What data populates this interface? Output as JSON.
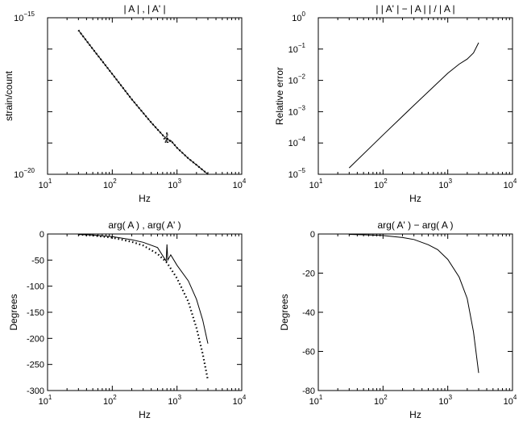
{
  "chart_data": [
    {
      "type": "line",
      "title": "| A | , | A' |",
      "xlabel": "Hz",
      "ylabel": "strain/count",
      "xscale": "log",
      "yscale": "log",
      "xlim": [
        10,
        10000
      ],
      "ylim": [
        1e-20,
        1e-15
      ],
      "xticks": [
        {
          "base": "10",
          "exp": "1"
        },
        {
          "base": "10",
          "exp": "2"
        },
        {
          "base": "10",
          "exp": "3"
        },
        {
          "base": "10",
          "exp": "4"
        }
      ],
      "yticks": [
        {
          "base": "10",
          "exp": "−15"
        },
        {
          "base": "10",
          "exp": "−20"
        }
      ],
      "series": [
        {
          "style": "solid",
          "x": [
            30,
            50,
            100,
            200,
            400,
            600,
            700,
            750,
            800,
            1000,
            1500,
            2000,
            3000
          ],
          "y": [
            4e-16,
            1e-16,
            1.6e-17,
            2.5e-18,
            4.5e-19,
            1.8e-19,
            1.3e-19,
            1.25e-19,
            1.2e-19,
            7e-20,
            3.2e-20,
            2e-20,
            1e-20
          ]
        },
        {
          "style": "dotted",
          "x": [
            30,
            50,
            100,
            200,
            400,
            600,
            680,
            700,
            720,
            800,
            1000,
            1500,
            2000,
            3000
          ],
          "y": [
            4e-16,
            1e-16,
            1.6e-17,
            2.5e-18,
            4.5e-19,
            1.8e-19,
            1e-19,
            2.2e-19,
            1e-19,
            1.2e-19,
            7e-20,
            3.2e-20,
            2e-20,
            1e-20
          ]
        }
      ]
    },
    {
      "type": "line",
      "title": "| | A' | − | A | | / | A |",
      "xlabel": "Hz",
      "ylabel": "Relative error",
      "xscale": "log",
      "yscale": "log",
      "xlim": [
        10,
        10000
      ],
      "ylim": [
        1e-05,
        1
      ],
      "xticks": [
        {
          "base": "10",
          "exp": "1"
        },
        {
          "base": "10",
          "exp": "2"
        },
        {
          "base": "10",
          "exp": "3"
        },
        {
          "base": "10",
          "exp": "4"
        }
      ],
      "yticks": [
        {
          "base": "10",
          "exp": "0"
        },
        {
          "base": "10",
          "exp": "−1"
        },
        {
          "base": "10",
          "exp": "−2"
        },
        {
          "base": "10",
          "exp": "−3"
        },
        {
          "base": "10",
          "exp": "−4"
        },
        {
          "base": "10",
          "exp": "−5"
        }
      ],
      "series": [
        {
          "style": "solid",
          "x": [
            30,
            100,
            300,
            1000,
            1500,
            2000,
            2500,
            3000
          ],
          "y": [
            1.6e-05,
            0.00018,
            0.0016,
            0.017,
            0.033,
            0.048,
            0.075,
            0.16
          ]
        }
      ]
    },
    {
      "type": "line",
      "title": "arg( A ) , arg( A' )",
      "xlabel": "Hz",
      "ylabel": "Degrees",
      "xscale": "log",
      "yscale": "linear",
      "xlim": [
        10,
        10000
      ],
      "ylim": [
        -300,
        0
      ],
      "xticks": [
        {
          "base": "10",
          "exp": "1"
        },
        {
          "base": "10",
          "exp": "2"
        },
        {
          "base": "10",
          "exp": "3"
        },
        {
          "base": "10",
          "exp": "4"
        }
      ],
      "yticks": [
        "0",
        "-50",
        "-100",
        "-150",
        "-200",
        "-250",
        "-300"
      ],
      "series": [
        {
          "style": "solid",
          "x": [
            30,
            50,
            100,
            200,
            300,
            500,
            680,
            700,
            720,
            800,
            1000,
            1500,
            2000,
            2500,
            3000
          ],
          "y": [
            -1,
            -2,
            -5,
            -11,
            -16,
            -26,
            -52,
            -20,
            -50,
            -40,
            -60,
            -90,
            -125,
            -165,
            -210
          ]
        },
        {
          "style": "dotted",
          "x": [
            30,
            50,
            100,
            200,
            300,
            500,
            700,
            1000,
            1500,
            2000,
            2500,
            3000
          ],
          "y": [
            -1,
            -3,
            -7,
            -15,
            -22,
            -38,
            -55,
            -85,
            -130,
            -180,
            -230,
            -280
          ]
        }
      ]
    },
    {
      "type": "line",
      "title": "arg( A' ) − arg( A )",
      "xlabel": "Hz",
      "ylabel": "Degrees",
      "xscale": "log",
      "yscale": "linear",
      "xlim": [
        10,
        10000
      ],
      "ylim": [
        -80,
        0
      ],
      "xticks": [
        {
          "base": "10",
          "exp": "1"
        },
        {
          "base": "10",
          "exp": "2"
        },
        {
          "base": "10",
          "exp": "3"
        },
        {
          "base": "10",
          "exp": "4"
        }
      ],
      "yticks": [
        "0",
        "-20",
        "-40",
        "-60",
        "-80"
      ],
      "series": [
        {
          "style": "solid",
          "x": [
            30,
            50,
            100,
            200,
            300,
            500,
            700,
            1000,
            1500,
            2000,
            2500,
            3000
          ],
          "y": [
            -0.2,
            -0.4,
            -0.8,
            -1.8,
            -2.8,
            -5.5,
            -8,
            -13,
            -22,
            -33,
            -50,
            -71
          ]
        }
      ]
    }
  ]
}
